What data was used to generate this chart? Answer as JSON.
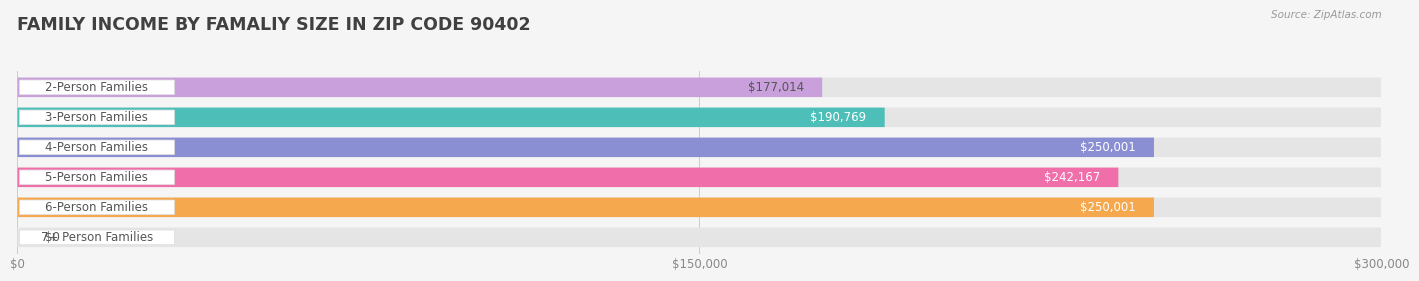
{
  "title": "FAMILY INCOME BY FAMALIY SIZE IN ZIP CODE 90402",
  "source": "Source: ZipAtlas.com",
  "categories": [
    "2-Person Families",
    "3-Person Families",
    "4-Person Families",
    "5-Person Families",
    "6-Person Families",
    "7+ Person Families"
  ],
  "values": [
    177014,
    190769,
    250001,
    242167,
    250001,
    0
  ],
  "bar_colors": [
    "#c9a0dc",
    "#4dbfb8",
    "#8a8fd4",
    "#f06eaa",
    "#f5a84e",
    "#f4b8b8"
  ],
  "value_text_colors": [
    "#555555",
    "#ffffff",
    "#ffffff",
    "#ffffff",
    "#ffffff",
    "#555555"
  ],
  "xmax": 300000,
  "xticks": [
    0,
    150000,
    300000
  ],
  "xtick_labels": [
    "$0",
    "$150,000",
    "$300,000"
  ],
  "background_color": "#f5f5f5",
  "bar_bg_color": "#e5e5e5",
  "title_color": "#404040",
  "title_fontsize": 12.5,
  "axis_fontsize": 8.5,
  "label_fontsize": 8.5,
  "value_fontsize": 8.5,
  "value_labels": [
    "$177,014",
    "$190,769",
    "$250,001",
    "$242,167",
    "$250,001",
    "$0"
  ],
  "pill_bg": "#ffffff",
  "pill_edge": "#dddddd",
  "text_color": "#555555"
}
